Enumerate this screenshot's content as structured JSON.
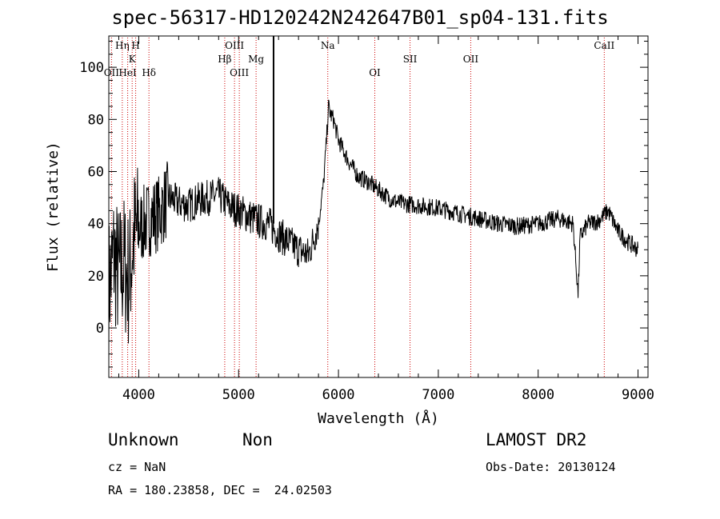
{
  "title": "spec-56317-HD120242N242647B01_sp04-131.fits",
  "info": {
    "class_label": "Unknown",
    "subclass_label": "Non",
    "survey": "LAMOST DR2",
    "cz": "cz = NaN",
    "obs_date": "Obs-Date: 20130124",
    "coords": "RA = 180.23858, DEC =  24.02503"
  },
  "chart_data": {
    "type": "line",
    "xlabel": "Wavelength (Å)",
    "ylabel": "Flux (relative)",
    "xlim": [
      3700,
      9100
    ],
    "ylim": [
      -19,
      112
    ],
    "xticks": [
      4000,
      5000,
      6000,
      7000,
      8000,
      9000
    ],
    "yticks": [
      0,
      20,
      40,
      60,
      80,
      100
    ],
    "series_color": "#000000",
    "line_marker_color": "#cc0000",
    "spectrum": {
      "x": [
        3700,
        3750,
        3800,
        3850,
        3900,
        3950,
        4000,
        4050,
        4100,
        4200,
        4300,
        4400,
        4500,
        4600,
        4700,
        4800,
        4900,
        5000,
        5100,
        5200,
        5300,
        5400,
        5500,
        5600,
        5700,
        5800,
        5850,
        5880,
        5900,
        5920,
        5950,
        6000,
        6100,
        6200,
        6300,
        6400,
        6500,
        6600,
        6800,
        7000,
        7200,
        7400,
        7600,
        7800,
        8000,
        8200,
        8350,
        8400,
        8420,
        8500,
        8600,
        8700,
        8800,
        8900,
        9000
      ],
      "y": [
        15,
        28,
        20,
        25,
        18,
        35,
        38,
        40,
        42,
        44,
        50,
        48,
        47,
        49,
        50,
        51,
        47,
        45,
        43,
        41,
        40,
        36,
        33,
        30,
        28,
        40,
        55,
        72,
        85,
        82,
        80,
        72,
        64,
        58,
        56,
        53,
        50,
        48,
        47,
        46,
        44,
        42,
        40,
        39,
        40,
        42,
        40,
        13,
        35,
        40,
        41,
        45,
        37,
        33,
        30
      ]
    },
    "absorption_spike": {
      "x": 5350,
      "y": 112
    },
    "line_markers": [
      {
        "label": "OII",
        "x": 3727,
        "row": 3
      },
      {
        "label": "Hη",
        "x": 3835,
        "row": 1
      },
      {
        "label": "HeI",
        "x": 3889,
        "row": 3
      },
      {
        "label": "K",
        "x": 3934,
        "row": 2
      },
      {
        "label": "H",
        "x": 3969,
        "row": 1
      },
      {
        "label": "Hδ",
        "x": 4102,
        "row": 3
      },
      {
        "label": "Hβ",
        "x": 4861,
        "row": 2
      },
      {
        "label": "OIII",
        "x": 4959,
        "row": 1
      },
      {
        "label": "OIII",
        "x": 5007,
        "row": 3
      },
      {
        "label": "Mg",
        "x": 5175,
        "row": 2
      },
      {
        "label": "Na",
        "x": 5893,
        "row": 1
      },
      {
        "label": "OI",
        "x": 6364,
        "row": 3
      },
      {
        "label": "OII",
        "x": 7325,
        "row": 2
      },
      {
        "label": "SII",
        "x": 6717,
        "row": 2
      },
      {
        "label": "CaII",
        "x": 8662,
        "row": 1
      }
    ]
  }
}
